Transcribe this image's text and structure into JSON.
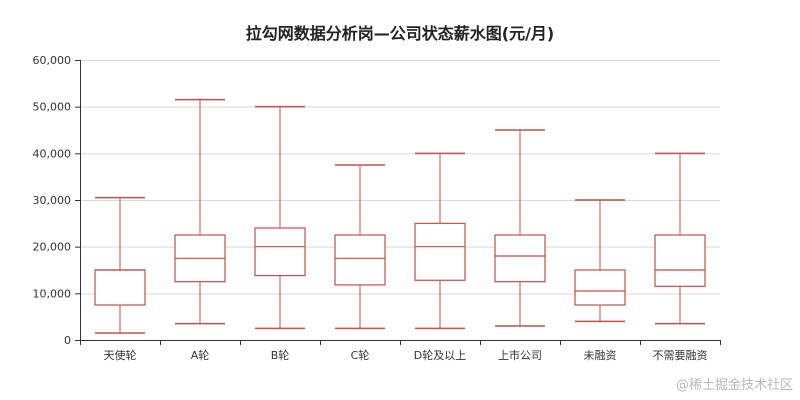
{
  "chart_data": {
    "type": "boxplot",
    "title": "拉勾网数据分析岗—公司状态薪水图(元/月)",
    "categories": [
      "天使轮",
      "A轮",
      "B轮",
      "C轮",
      "D轮及以上",
      "上市公司",
      "未融资",
      "不需要融资"
    ],
    "boxes": [
      {
        "min": 1500,
        "q1": 7500,
        "median": 15000,
        "q3": 15000,
        "max": 30500
      },
      {
        "min": 3500,
        "q1": 12500,
        "median": 17500,
        "q3": 22500,
        "max": 51500
      },
      {
        "min": 2500,
        "q1": 13800,
        "median": 20000,
        "q3": 24000,
        "max": 50000
      },
      {
        "min": 2500,
        "q1": 11800,
        "median": 17500,
        "q3": 22500,
        "max": 37500
      },
      {
        "min": 2500,
        "q1": 12800,
        "median": 20000,
        "q3": 25000,
        "max": 40000
      },
      {
        "min": 3000,
        "q1": 12500,
        "median": 18000,
        "q3": 22500,
        "max": 45000
      },
      {
        "min": 4000,
        "q1": 7500,
        "median": 10500,
        "q3": 15000,
        "max": 30000
      },
      {
        "min": 3500,
        "q1": 11500,
        "median": 15000,
        "q3": 22500,
        "max": 40000
      }
    ],
    "ylim": [
      0,
      60000
    ],
    "yticks": [
      0,
      10000,
      20000,
      30000,
      40000,
      50000,
      60000
    ],
    "ytick_labels": [
      "0",
      "10,000",
      "20,000",
      "30,000",
      "40,000",
      "50,000",
      "60,000"
    ],
    "grid": true,
    "box_color": "#c1514a",
    "grid_color": "#d9d9d9"
  },
  "watermark": "@稀土掘金技术社区"
}
